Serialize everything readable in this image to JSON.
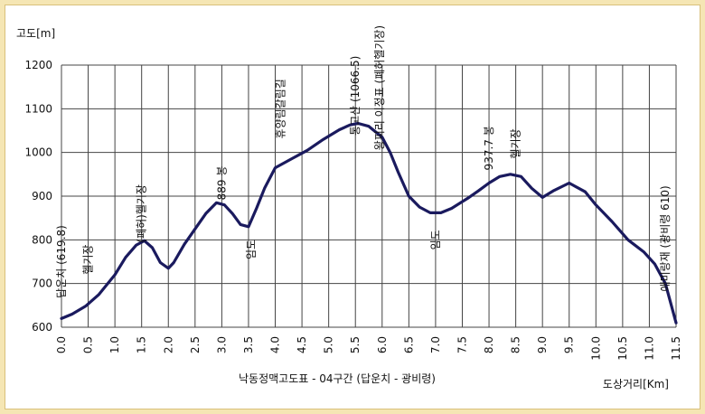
{
  "chart_data": {
    "type": "line",
    "title": "",
    "caption": "낙동정맥고도표 - 04구간 (답운치 - 광비령)",
    "ylabel": "고도[m]",
    "xlabel": "도상거리[Km]",
    "xlim": [
      0.0,
      11.5
    ],
    "ylim": [
      600,
      1200
    ],
    "grid": true,
    "legend": "none",
    "line_color": "#1a1a5e",
    "x_ticks": [
      "0.0",
      "0.5",
      "1.0",
      "1.5",
      "2.0",
      "2.5",
      "3.0",
      "3.5",
      "4.0",
      "4.5",
      "5.0",
      "5.5",
      "6.0",
      "6.5",
      "7.0",
      "7.5",
      "8.0",
      "8.5",
      "9.0",
      "9.5",
      "10.0",
      "10.5",
      "11.0",
      "11.5"
    ],
    "y_ticks": [
      "600",
      "700",
      "800",
      "900",
      "1000",
      "1100",
      "1200"
    ],
    "series": [
      {
        "x": [
          0.0,
          0.2,
          0.45,
          0.7,
          1.0,
          1.2,
          1.4,
          1.55,
          1.7,
          1.85,
          2.0,
          2.1,
          2.3,
          2.5,
          2.7,
          2.9,
          3.05,
          3.2,
          3.35,
          3.5,
          3.65,
          3.8,
          4.0,
          4.3,
          4.6,
          4.9,
          5.2,
          5.4,
          5.55,
          5.75,
          6.0,
          6.15,
          6.3,
          6.5,
          6.7,
          6.9,
          7.1,
          7.3,
          7.6,
          7.8,
          8.0,
          8.2,
          8.4,
          8.6,
          8.8,
          9.0,
          9.2,
          9.5,
          9.8,
          10.0,
          10.3,
          10.6,
          10.9,
          11.1,
          11.3,
          11.5
        ],
        "y": [
          619.8,
          630,
          648,
          675,
          720,
          760,
          788,
          798,
          782,
          748,
          735,
          748,
          790,
          825,
          860,
          885,
          880,
          860,
          835,
          830,
          872,
          918,
          965,
          985,
          1005,
          1030,
          1052,
          1063,
          1066.5,
          1060,
          1035,
          1000,
          955,
          900,
          875,
          862,
          862,
          872,
          895,
          912,
          930,
          945,
          950,
          945,
          918,
          897,
          912,
          930,
          910,
          880,
          842,
          800,
          772,
          745,
          700,
          610
        ]
      }
    ],
    "annotations": [
      {
        "text": "답운치 (619.8)",
        "x": 0.0,
        "y": 750
      },
      {
        "text": "헬기장",
        "x": 0.5,
        "y": 755
      },
      {
        "text": "(폐허)헬기장",
        "x": 1.5,
        "y": 860
      },
      {
        "text": "889 봉",
        "x": 3.0,
        "y": 930
      },
      {
        "text": "임도",
        "x": 3.55,
        "y": 778
      },
      {
        "text": "휴양림갈림길",
        "x": 4.1,
        "y": 1100
      },
      {
        "text": "통고산 (1066.5)",
        "x": 5.5,
        "y": 1130
      },
      {
        "text": "왕피리 이정표 (폐허헬기장)",
        "x": 5.95,
        "y": 1148
      },
      {
        "text": "임도",
        "x": 7.0,
        "y": 800
      },
      {
        "text": "937.7 봉",
        "x": 8.0,
        "y": 1010
      },
      {
        "text": "헬기장",
        "x": 8.5,
        "y": 1020
      },
      {
        "text": "애미랑재 (광비령 610)",
        "x": 11.3,
        "y": 803
      }
    ]
  }
}
